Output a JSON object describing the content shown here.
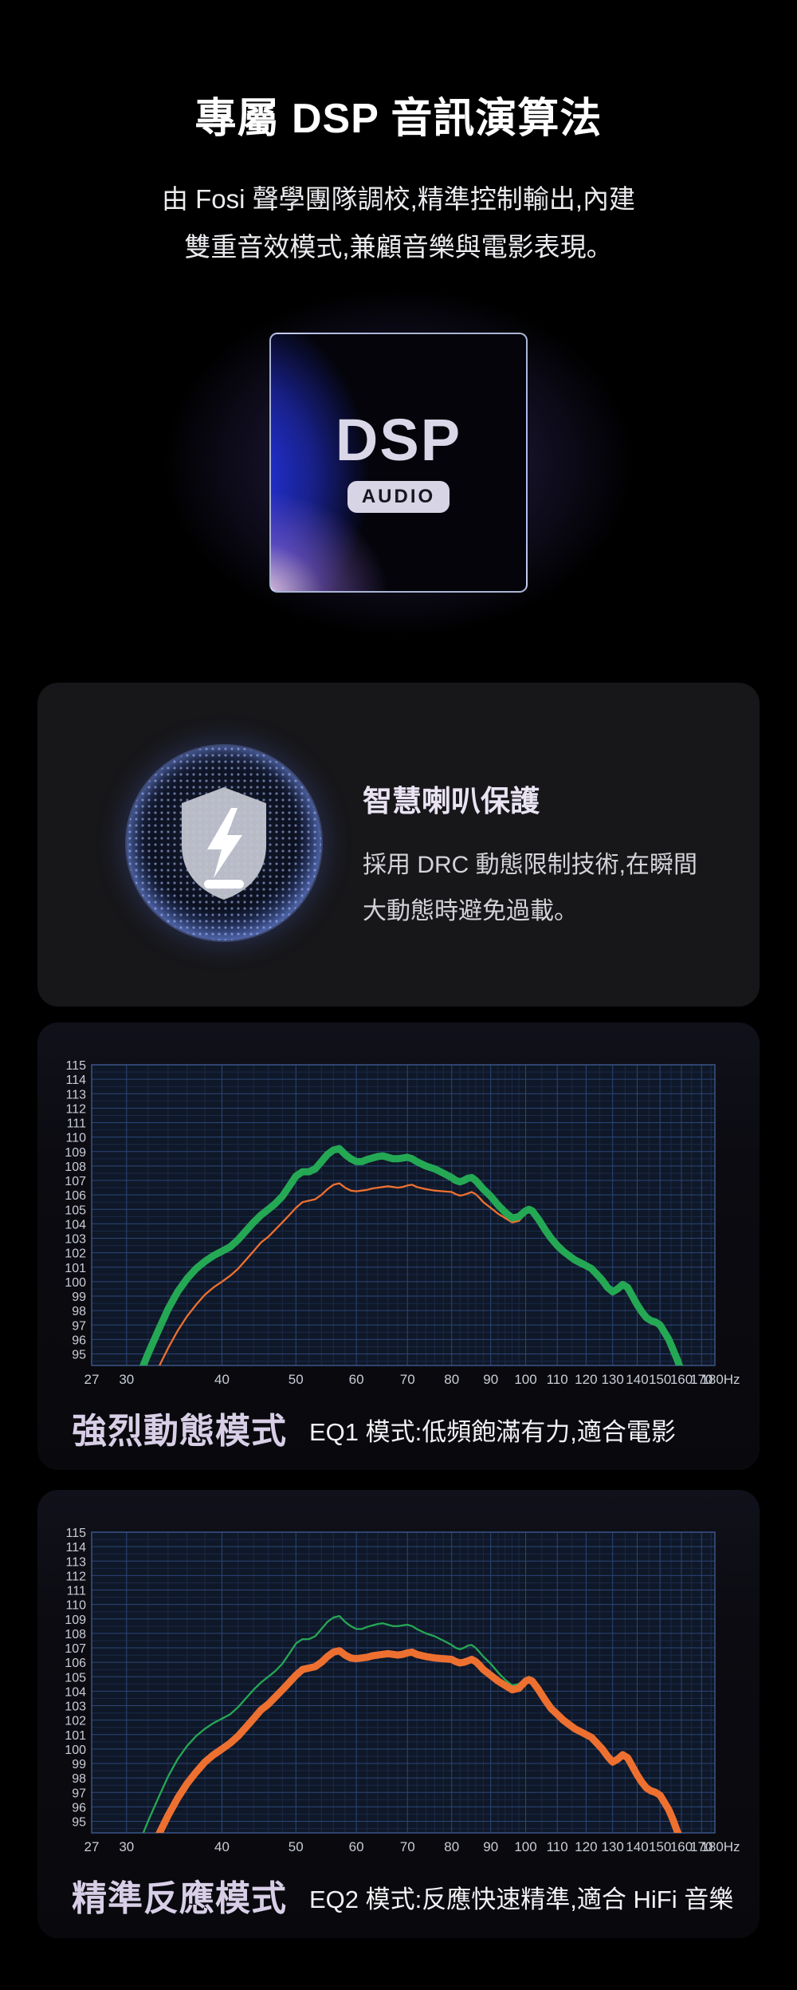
{
  "page": {
    "title": "專屬 DSP 音訊演算法",
    "subtitle_line1": "由 Fosi 聲學團隊調校,精準控制輸出,內建",
    "subtitle_line2": "雙重音效模式,兼顧音樂與電影表現。"
  },
  "dsp_badge": {
    "name": "DSP",
    "tag": "AUDIO"
  },
  "protection": {
    "heading": "智慧喇叭保護",
    "body_line1": "採用 DRC 動態限制技術,在瞬間",
    "body_line2": "大動態時避免過載。"
  },
  "chart_data": {
    "type": "line",
    "x_axis": {
      "scale": "log",
      "unit": "Hz",
      "min": 27,
      "max": 177,
      "major_ticks": [
        27,
        30,
        40,
        50,
        60,
        70,
        80,
        90,
        100,
        110,
        120,
        130,
        140,
        150,
        160,
        170,
        180
      ],
      "last_tick_label": "180Hz",
      "minor_ticks": [
        32,
        34,
        36,
        38,
        42,
        44,
        46,
        48,
        52,
        54,
        56,
        58,
        62,
        64,
        66,
        68,
        72,
        74,
        76,
        78,
        82,
        84,
        86,
        88,
        92,
        94,
        96,
        98,
        105,
        115,
        125,
        135,
        145,
        155,
        165,
        175
      ]
    },
    "y_axis": {
      "min": 94.2,
      "max": 115,
      "tick_step": 1,
      "ticks": [
        95,
        96,
        97,
        98,
        99,
        100,
        101,
        102,
        103,
        104,
        105,
        106,
        107,
        108,
        109,
        110,
        111,
        112,
        113,
        114,
        115
      ]
    },
    "grid": true,
    "legend": "none",
    "style": {
      "plot_bg": "#0f1828",
      "plot_border": "#3a5488",
      "grid_major": "#2b4679",
      "grid_minor": "#1b2947",
      "tick_text": "#c9cdd6",
      "highlight_width": 9,
      "thin_width": 2.3
    },
    "series": [
      {
        "name": "EQ1",
        "color": "#25a854",
        "points": [
          [
            31,
            93.2
          ],
          [
            32,
            95.0
          ],
          [
            33,
            96.6
          ],
          [
            34,
            98.1
          ],
          [
            35,
            99.3
          ],
          [
            36,
            100.2
          ],
          [
            37,
            100.9
          ],
          [
            38,
            101.4
          ],
          [
            39,
            101.8
          ],
          [
            40,
            102.1
          ],
          [
            41,
            102.4
          ],
          [
            42,
            102.9
          ],
          [
            43,
            103.5
          ],
          [
            44,
            104.1
          ],
          [
            45,
            104.6
          ],
          [
            46,
            105.0
          ],
          [
            47,
            105.4
          ],
          [
            48,
            105.9
          ],
          [
            49,
            106.6
          ],
          [
            50,
            107.3
          ],
          [
            51,
            107.6
          ],
          [
            52,
            107.6
          ],
          [
            53,
            107.8
          ],
          [
            54,
            108.3
          ],
          [
            55,
            108.8
          ],
          [
            56,
            109.1
          ],
          [
            57,
            109.2
          ],
          [
            58,
            108.8
          ],
          [
            59,
            108.5
          ],
          [
            60,
            108.3
          ],
          [
            61,
            108.3
          ],
          [
            62,
            108.45
          ],
          [
            63,
            108.55
          ],
          [
            64,
            108.65
          ],
          [
            65,
            108.7
          ],
          [
            66,
            108.6
          ],
          [
            67,
            108.5
          ],
          [
            68,
            108.5
          ],
          [
            69,
            108.55
          ],
          [
            70,
            108.6
          ],
          [
            71,
            108.5
          ],
          [
            72,
            108.3
          ],
          [
            74,
            108.0
          ],
          [
            76,
            107.8
          ],
          [
            78,
            107.5
          ],
          [
            80,
            107.2
          ],
          [
            81,
            107.0
          ],
          [
            82,
            106.9
          ],
          [
            83,
            107.0
          ],
          [
            84,
            107.15
          ],
          [
            85,
            107.2
          ],
          [
            86,
            107.0
          ],
          [
            87,
            106.7
          ],
          [
            88,
            106.4
          ],
          [
            90,
            105.9
          ],
          [
            92,
            105.3
          ],
          [
            94,
            104.8
          ],
          [
            96,
            104.4
          ],
          [
            98,
            104.5
          ],
          [
            100,
            104.9
          ],
          [
            101,
            105.0
          ],
          [
            102,
            104.9
          ],
          [
            104,
            104.3
          ],
          [
            106,
            103.6
          ],
          [
            108,
            103.0
          ],
          [
            110,
            102.5
          ],
          [
            112,
            102.1
          ],
          [
            114,
            101.8
          ],
          [
            116,
            101.5
          ],
          [
            118,
            101.3
          ],
          [
            120,
            101.1
          ],
          [
            122,
            100.9
          ],
          [
            124,
            100.5
          ],
          [
            126,
            100.1
          ],
          [
            128,
            99.6
          ],
          [
            130,
            99.3
          ],
          [
            132,
            99.5
          ],
          [
            134,
            99.8
          ],
          [
            136,
            99.6
          ],
          [
            138,
            99.0
          ],
          [
            140,
            98.4
          ],
          [
            142,
            97.9
          ],
          [
            144,
            97.5
          ],
          [
            146,
            97.3
          ],
          [
            148,
            97.2
          ],
          [
            150,
            97.0
          ],
          [
            152,
            96.5
          ],
          [
            154,
            96.0
          ],
          [
            156,
            95.3
          ],
          [
            158,
            94.6
          ],
          [
            160,
            93.8
          ],
          [
            162,
            92.9
          ]
        ]
      },
      {
        "name": "EQ2",
        "color": "#ee7030",
        "points": [
          [
            32.5,
            93.3
          ],
          [
            34,
            95.4
          ],
          [
            35,
            96.6
          ],
          [
            36,
            97.6
          ],
          [
            37,
            98.4
          ],
          [
            38,
            99.1
          ],
          [
            39,
            99.6
          ],
          [
            40,
            100.0
          ],
          [
            41,
            100.4
          ],
          [
            42,
            100.9
          ],
          [
            43,
            101.5
          ],
          [
            44,
            102.1
          ],
          [
            45,
            102.7
          ],
          [
            46,
            103.1
          ],
          [
            47,
            103.6
          ],
          [
            48,
            104.1
          ],
          [
            49,
            104.6
          ],
          [
            50,
            105.1
          ],
          [
            51,
            105.5
          ],
          [
            52,
            105.6
          ],
          [
            53,
            105.7
          ],
          [
            54,
            106.0
          ],
          [
            55,
            106.4
          ],
          [
            56,
            106.7
          ],
          [
            57,
            106.8
          ],
          [
            58,
            106.5
          ],
          [
            59,
            106.3
          ],
          [
            60,
            106.25
          ],
          [
            61,
            106.3
          ],
          [
            62,
            106.35
          ],
          [
            63,
            106.45
          ],
          [
            64,
            106.5
          ],
          [
            65,
            106.55
          ],
          [
            66,
            106.6
          ],
          [
            67,
            106.55
          ],
          [
            68,
            106.5
          ],
          [
            69,
            106.55
          ],
          [
            70,
            106.65
          ],
          [
            71,
            106.7
          ],
          [
            72,
            106.55
          ],
          [
            74,
            106.4
          ],
          [
            76,
            106.3
          ],
          [
            78,
            106.25
          ],
          [
            80,
            106.2
          ],
          [
            81,
            106.05
          ],
          [
            82,
            105.95
          ],
          [
            83,
            106.0
          ],
          [
            84,
            106.1
          ],
          [
            85,
            106.2
          ],
          [
            86,
            106.05
          ],
          [
            87,
            105.8
          ],
          [
            88,
            105.5
          ],
          [
            90,
            105.1
          ],
          [
            92,
            104.7
          ],
          [
            94,
            104.4
          ],
          [
            96,
            104.1
          ],
          [
            98,
            104.2
          ],
          [
            100,
            104.7
          ],
          [
            101,
            104.8
          ],
          [
            102,
            104.7
          ],
          [
            104,
            104.1
          ],
          [
            106,
            103.4
          ],
          [
            108,
            102.8
          ],
          [
            110,
            102.4
          ],
          [
            112,
            102.0
          ],
          [
            114,
            101.7
          ],
          [
            116,
            101.4
          ],
          [
            118,
            101.2
          ],
          [
            120,
            101.0
          ],
          [
            122,
            100.8
          ],
          [
            124,
            100.4
          ],
          [
            126,
            100.0
          ],
          [
            128,
            99.5
          ],
          [
            130,
            99.1
          ],
          [
            132,
            99.3
          ],
          [
            134,
            99.6
          ],
          [
            136,
            99.4
          ],
          [
            138,
            98.8
          ],
          [
            140,
            98.2
          ],
          [
            142,
            97.7
          ],
          [
            144,
            97.3
          ],
          [
            146,
            97.1
          ],
          [
            148,
            97.0
          ],
          [
            150,
            96.8
          ],
          [
            152,
            96.3
          ],
          [
            154,
            95.8
          ],
          [
            156,
            95.1
          ],
          [
            158,
            94.3
          ],
          [
            160,
            93.5
          ]
        ]
      }
    ],
    "charts": [
      {
        "highlight": "EQ1",
        "mode_label": "強烈動態模式",
        "description": "EQ1 模式:低頻飽滿有力,適合電影"
      },
      {
        "highlight": "EQ2",
        "mode_label": "精準反應模式",
        "description": "EQ2 模式:反應快速精準,適合 HiFi 音樂"
      }
    ]
  }
}
